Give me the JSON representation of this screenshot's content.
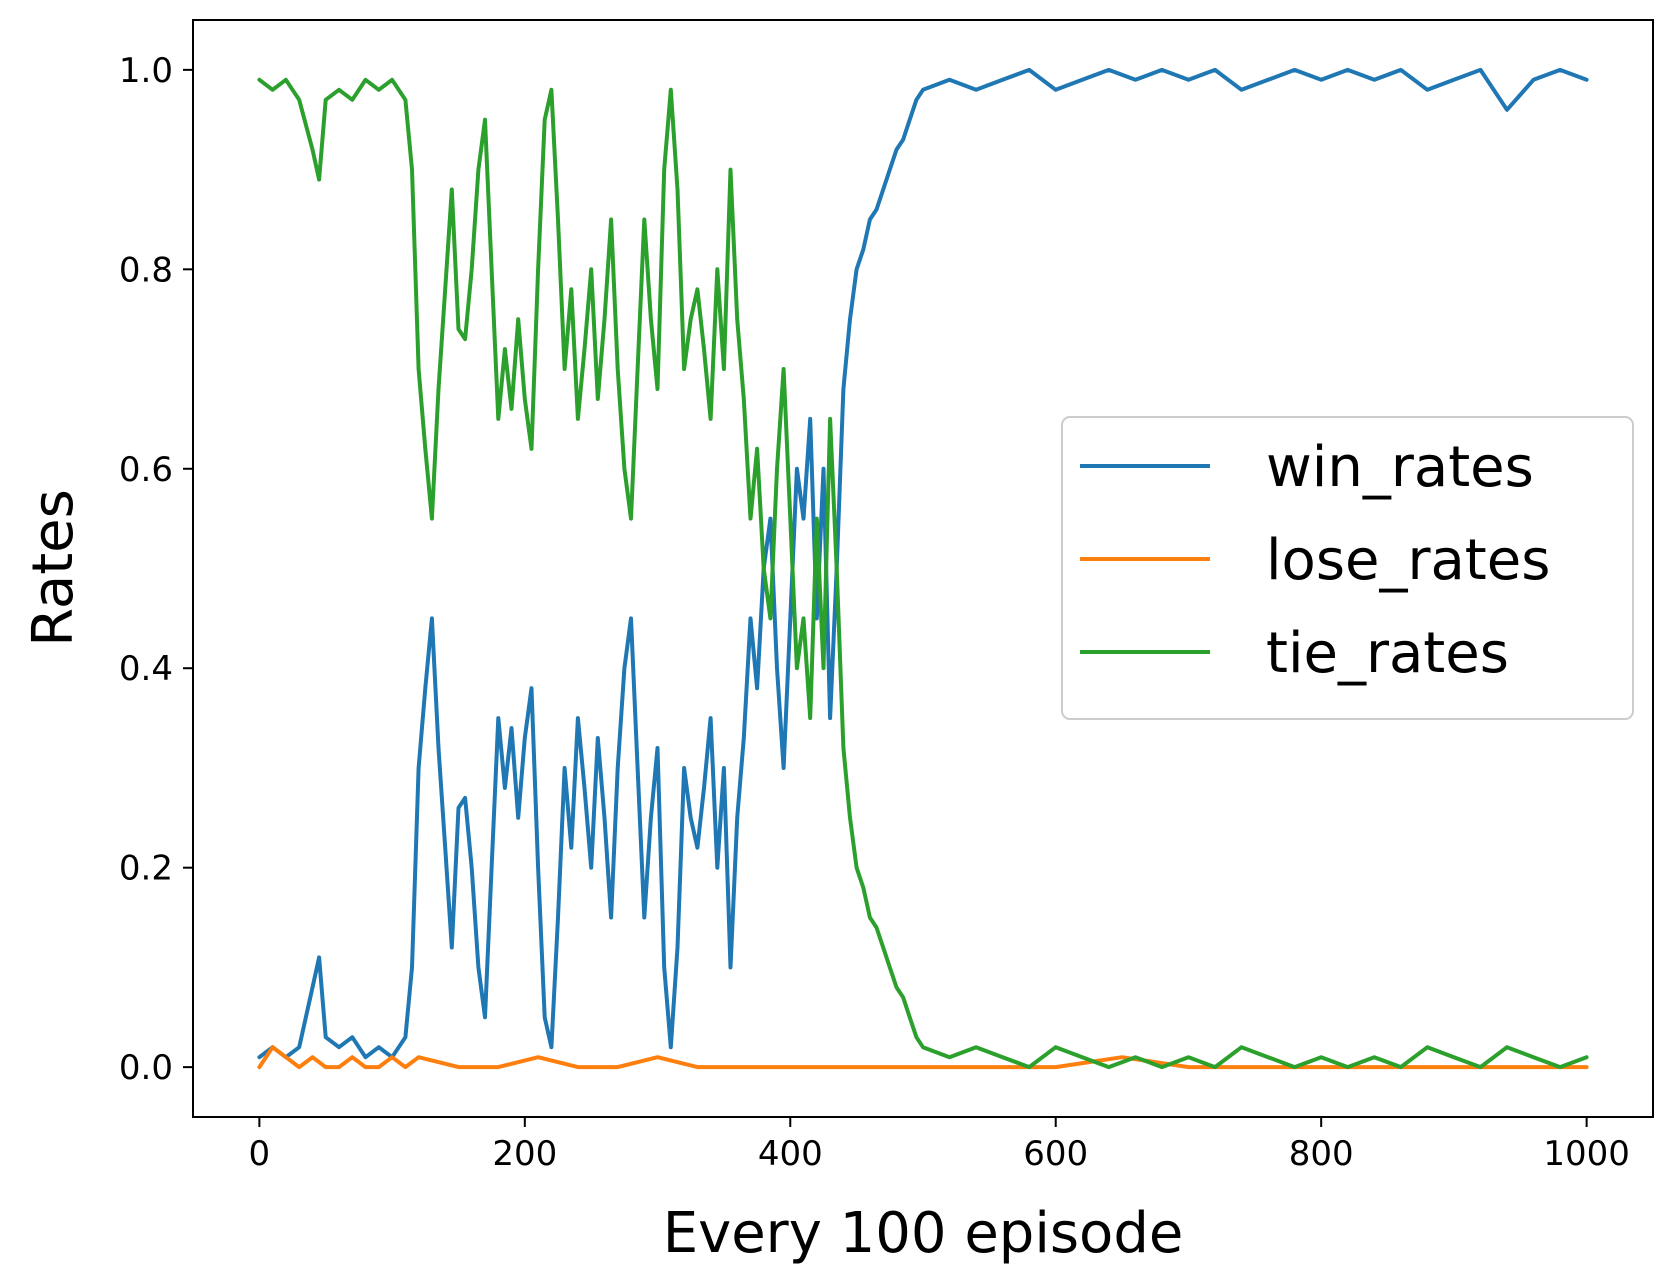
{
  "chart_data": {
    "type": "line",
    "title": "",
    "xlabel": "Every 100 episode",
    "ylabel": "Rates",
    "xlim": [
      -50,
      1050
    ],
    "ylim": [
      -0.05,
      1.05
    ],
    "x_ticks": [
      0,
      200,
      400,
      600,
      800,
      1000
    ],
    "x_tick_labels": [
      "0",
      "200",
      "400",
      "600",
      "800",
      "1000"
    ],
    "y_ticks": [
      0.0,
      0.2,
      0.4,
      0.6,
      0.8,
      1.0
    ],
    "y_tick_labels": [
      "0.0",
      "0.2",
      "0.4",
      "0.6",
      "0.8",
      "1.0"
    ],
    "grid": false,
    "legend_position": "center-right",
    "series": [
      {
        "name": "win_rates",
        "color": "#1f77b4",
        "x": [
          0,
          10,
          20,
          30,
          40,
          45,
          50,
          60,
          70,
          80,
          90,
          100,
          110,
          115,
          120,
          125,
          130,
          135,
          140,
          145,
          150,
          155,
          160,
          165,
          170,
          175,
          180,
          185,
          190,
          195,
          200,
          205,
          210,
          215,
          220,
          225,
          230,
          235,
          240,
          245,
          250,
          255,
          260,
          265,
          270,
          275,
          280,
          285,
          290,
          295,
          300,
          305,
          310,
          315,
          320,
          325,
          330,
          335,
          340,
          345,
          350,
          355,
          360,
          365,
          370,
          375,
          380,
          385,
          390,
          395,
          400,
          405,
          410,
          415,
          420,
          425,
          430,
          435,
          440,
          445,
          450,
          455,
          460,
          465,
          470,
          475,
          480,
          485,
          490,
          495,
          500,
          520,
          540,
          560,
          580,
          600,
          620,
          640,
          660,
          680,
          700,
          720,
          740,
          760,
          780,
          800,
          820,
          840,
          860,
          880,
          900,
          920,
          940,
          960,
          980,
          1000
        ],
        "values": [
          0.01,
          0.02,
          0.01,
          0.02,
          0.08,
          0.11,
          0.03,
          0.02,
          0.03,
          0.01,
          0.02,
          0.01,
          0.03,
          0.1,
          0.3,
          0.38,
          0.45,
          0.32,
          0.22,
          0.12,
          0.26,
          0.27,
          0.2,
          0.1,
          0.05,
          0.2,
          0.35,
          0.28,
          0.34,
          0.25,
          0.33,
          0.38,
          0.2,
          0.05,
          0.02,
          0.15,
          0.3,
          0.22,
          0.35,
          0.28,
          0.2,
          0.33,
          0.25,
          0.15,
          0.3,
          0.4,
          0.45,
          0.3,
          0.15,
          0.25,
          0.32,
          0.1,
          0.02,
          0.12,
          0.3,
          0.25,
          0.22,
          0.28,
          0.35,
          0.2,
          0.3,
          0.1,
          0.25,
          0.33,
          0.45,
          0.38,
          0.5,
          0.55,
          0.4,
          0.3,
          0.45,
          0.6,
          0.55,
          0.65,
          0.45,
          0.6,
          0.35,
          0.5,
          0.68,
          0.75,
          0.8,
          0.82,
          0.85,
          0.86,
          0.88,
          0.9,
          0.92,
          0.93,
          0.95,
          0.97,
          0.98,
          0.99,
          0.98,
          0.99,
          1.0,
          0.98,
          0.99,
          1.0,
          0.99,
          1.0,
          0.99,
          1.0,
          0.98,
          0.99,
          1.0,
          0.99,
          1.0,
          0.99,
          1.0,
          0.98,
          0.99,
          1.0,
          0.96,
          0.99,
          1.0,
          0.99
        ]
      },
      {
        "name": "lose_rates",
        "color": "#ff7f0e",
        "x": [
          0,
          10,
          20,
          30,
          40,
          50,
          60,
          70,
          80,
          90,
          100,
          110,
          120,
          150,
          180,
          210,
          240,
          270,
          300,
          330,
          360,
          400,
          450,
          500,
          550,
          600,
          650,
          700,
          750,
          800,
          850,
          900,
          950,
          1000
        ],
        "values": [
          0.0,
          0.02,
          0.01,
          0.0,
          0.01,
          0.0,
          0.0,
          0.01,
          0.0,
          0.0,
          0.01,
          0.0,
          0.01,
          0.0,
          0.0,
          0.01,
          0.0,
          0.0,
          0.01,
          0.0,
          0.0,
          0.0,
          0.0,
          0.0,
          0.0,
          0.0,
          0.01,
          0.0,
          0.0,
          0.0,
          0.0,
          0.0,
          0.0,
          0.0
        ]
      },
      {
        "name": "tie_rates",
        "color": "#2ca02c",
        "x": [
          0,
          10,
          20,
          30,
          40,
          45,
          50,
          60,
          70,
          80,
          90,
          100,
          110,
          115,
          120,
          125,
          130,
          135,
          140,
          145,
          150,
          155,
          160,
          165,
          170,
          175,
          180,
          185,
          190,
          195,
          200,
          205,
          210,
          215,
          220,
          225,
          230,
          235,
          240,
          245,
          250,
          255,
          260,
          265,
          270,
          275,
          280,
          285,
          290,
          295,
          300,
          305,
          310,
          315,
          320,
          325,
          330,
          335,
          340,
          345,
          350,
          355,
          360,
          365,
          370,
          375,
          380,
          385,
          390,
          395,
          400,
          405,
          410,
          415,
          420,
          425,
          430,
          435,
          440,
          445,
          450,
          455,
          460,
          465,
          470,
          475,
          480,
          485,
          490,
          495,
          500,
          520,
          540,
          560,
          580,
          600,
          620,
          640,
          660,
          680,
          700,
          720,
          740,
          760,
          780,
          800,
          820,
          840,
          860,
          880,
          900,
          920,
          940,
          960,
          980,
          1000
        ],
        "values": [
          0.99,
          0.98,
          0.99,
          0.97,
          0.92,
          0.89,
          0.97,
          0.98,
          0.97,
          0.99,
          0.98,
          0.99,
          0.97,
          0.9,
          0.7,
          0.62,
          0.55,
          0.68,
          0.78,
          0.88,
          0.74,
          0.73,
          0.8,
          0.9,
          0.95,
          0.8,
          0.65,
          0.72,
          0.66,
          0.75,
          0.67,
          0.62,
          0.8,
          0.95,
          0.98,
          0.85,
          0.7,
          0.78,
          0.65,
          0.72,
          0.8,
          0.67,
          0.75,
          0.85,
          0.7,
          0.6,
          0.55,
          0.7,
          0.85,
          0.75,
          0.68,
          0.9,
          0.98,
          0.88,
          0.7,
          0.75,
          0.78,
          0.72,
          0.65,
          0.8,
          0.7,
          0.9,
          0.75,
          0.67,
          0.55,
          0.62,
          0.5,
          0.45,
          0.6,
          0.7,
          0.55,
          0.4,
          0.45,
          0.35,
          0.55,
          0.4,
          0.65,
          0.5,
          0.32,
          0.25,
          0.2,
          0.18,
          0.15,
          0.14,
          0.12,
          0.1,
          0.08,
          0.07,
          0.05,
          0.03,
          0.02,
          0.01,
          0.02,
          0.01,
          0.0,
          0.02,
          0.01,
          0.0,
          0.01,
          0.0,
          0.01,
          0.0,
          0.02,
          0.01,
          0.0,
          0.01,
          0.0,
          0.01,
          0.0,
          0.02,
          0.01,
          0.0,
          0.02,
          0.01,
          0.0,
          0.01
        ]
      }
    ]
  }
}
